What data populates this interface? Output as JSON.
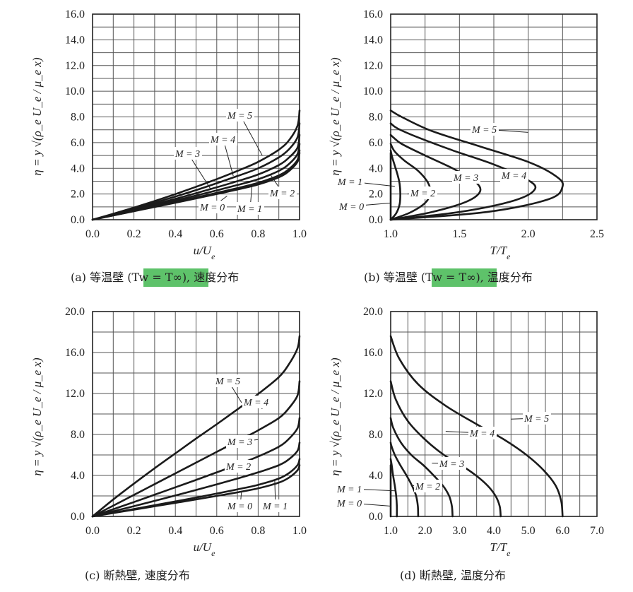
{
  "chart_data": [
    {
      "type": "line",
      "panel": "a",
      "xlabel": "u/U_e",
      "ylabel": "η = y √(ρ_e U_e / μ_e x)",
      "xlim": [
        0.0,
        1.0
      ],
      "ylim": [
        0.0,
        16.0
      ],
      "xticks": [
        "0.0",
        "0.2",
        "0.4",
        "0.6",
        "0.8",
        "1.0"
      ],
      "yticks": [
        "0.0",
        "2.0",
        "4.0",
        "6.0",
        "8.0",
        "10.0",
        "12.0",
        "14.0",
        "16.0"
      ],
      "caption": "(a) 等温壁 (Tw = T∞), 速度分布",
      "grid": true,
      "series": [
        {
          "name": "M = 0",
          "x": [
            0,
            0.1,
            0.2,
            0.3,
            0.4,
            0.5,
            0.6,
            0.7,
            0.8,
            0.9,
            0.95,
            0.99,
            1.0
          ],
          "y": [
            0,
            0.33,
            0.66,
            0.99,
            1.32,
            1.66,
            2.0,
            2.35,
            2.74,
            3.3,
            3.8,
            4.5,
            5.2
          ]
        },
        {
          "name": "M = 1",
          "x": [
            0,
            0.1,
            0.2,
            0.3,
            0.4,
            0.5,
            0.6,
            0.7,
            0.8,
            0.9,
            0.95,
            0.99,
            1.0
          ],
          "y": [
            0,
            0.34,
            0.68,
            1.03,
            1.38,
            1.73,
            2.09,
            2.46,
            2.87,
            3.45,
            3.95,
            4.65,
            5.4
          ]
        },
        {
          "name": "M = 2",
          "x": [
            0,
            0.1,
            0.2,
            0.3,
            0.4,
            0.5,
            0.6,
            0.7,
            0.8,
            0.9,
            0.95,
            0.99,
            1.0
          ],
          "y": [
            0,
            0.36,
            0.73,
            1.11,
            1.49,
            1.88,
            2.28,
            2.7,
            3.15,
            3.8,
            4.35,
            5.1,
            5.9
          ]
        },
        {
          "name": "M = 3",
          "x": [
            0,
            0.1,
            0.2,
            0.3,
            0.4,
            0.5,
            0.6,
            0.7,
            0.8,
            0.9,
            0.95,
            0.99,
            1.0
          ],
          "y": [
            0,
            0.38,
            0.78,
            1.2,
            1.62,
            2.06,
            2.52,
            3.0,
            3.52,
            4.25,
            4.85,
            5.6,
            6.6
          ]
        },
        {
          "name": "M = 4",
          "x": [
            0,
            0.1,
            0.2,
            0.3,
            0.4,
            0.5,
            0.6,
            0.7,
            0.8,
            0.9,
            0.95,
            0.99,
            1.0
          ],
          "y": [
            0,
            0.42,
            0.86,
            1.32,
            1.8,
            2.3,
            2.84,
            3.4,
            4.0,
            4.85,
            5.5,
            6.4,
            7.5
          ]
        },
        {
          "name": "M = 5",
          "x": [
            0,
            0.1,
            0.2,
            0.3,
            0.4,
            0.5,
            0.6,
            0.7,
            0.8,
            0.9,
            0.95,
            0.99,
            1.0
          ],
          "y": [
            0,
            0.46,
            0.94,
            1.45,
            1.99,
            2.56,
            3.16,
            3.8,
            4.5,
            5.45,
            6.2,
            7.3,
            8.5
          ]
        }
      ]
    },
    {
      "type": "line",
      "panel": "b",
      "xlabel": "T/T_e",
      "ylabel": "η = y √(ρ_e U_e / μ_e x)",
      "xlim": [
        1.0,
        2.5
      ],
      "ylim": [
        0.0,
        16.0
      ],
      "xticks": [
        "1.0",
        "1.5",
        "2.0",
        "2.5"
      ],
      "yticks": [
        "0.0",
        "2.0",
        "4.0",
        "6.0",
        "8.0",
        "10.0",
        "12.0",
        "14.0",
        "16.0"
      ],
      "caption": "(b) 等温壁 (Tw = T∞), 温度分布",
      "grid": true,
      "series": [
        {
          "name": "M = 0",
          "x": [
            1.0,
            1.0
          ],
          "y": [
            0,
            5.2
          ]
        },
        {
          "name": "M = 1",
          "x": [
            1.0,
            1.04,
            1.065,
            1.07,
            1.065,
            1.05,
            1.03,
            1.01,
            1.0
          ],
          "y": [
            0,
            0.5,
            1.2,
            2.0,
            2.8,
            3.5,
            4.2,
            4.9,
            5.4
          ]
        },
        {
          "name": "M = 2",
          "x": [
            1.0,
            1.14,
            1.25,
            1.29,
            1.27,
            1.2,
            1.1,
            1.03,
            1.0
          ],
          "y": [
            0,
            0.55,
            1.3,
            2.1,
            2.9,
            3.8,
            4.6,
            5.3,
            5.9
          ]
        },
        {
          "name": "M = 3",
          "x": [
            1.0,
            1.3,
            1.55,
            1.65,
            1.61,
            1.45,
            1.25,
            1.08,
            1.02,
            1.0
          ],
          "y": [
            0,
            0.6,
            1.4,
            2.2,
            3.0,
            4.0,
            5.0,
            5.9,
            6.4,
            6.6
          ]
        },
        {
          "name": "M = 4",
          "x": [
            1.0,
            1.5,
            1.9,
            2.05,
            1.98,
            1.75,
            1.45,
            1.2,
            1.05,
            1.0
          ],
          "y": [
            0,
            0.6,
            1.5,
            2.4,
            3.2,
            4.3,
            5.4,
            6.4,
            7.1,
            7.5
          ]
        },
        {
          "name": "M = 5",
          "x": [
            1.0,
            1.7,
            2.15,
            2.25,
            2.2,
            2.0,
            1.65,
            1.3,
            1.08,
            1.0
          ],
          "y": [
            0,
            0.6,
            1.6,
            2.6,
            3.4,
            4.5,
            5.7,
            6.9,
            8.0,
            8.5
          ]
        }
      ]
    },
    {
      "type": "line",
      "panel": "c",
      "xlabel": "u/U_e",
      "ylabel": "η = y √(ρ_e U_e / μ_e x)",
      "xlim": [
        0.0,
        1.0
      ],
      "ylim": [
        0.0,
        20.0
      ],
      "xticks": [
        "0.0",
        "0.2",
        "0.4",
        "0.6",
        "0.8",
        "1.0"
      ],
      "yticks": [
        "0.0",
        "4.0",
        "8.0",
        "12.0",
        "16.0",
        "20.0"
      ],
      "caption": "(c) 断熱壁, 速度分布",
      "grid": true,
      "series": [
        {
          "name": "M = 0",
          "x": [
            0,
            0.1,
            0.2,
            0.3,
            0.4,
            0.5,
            0.6,
            0.7,
            0.8,
            0.9,
            0.95,
            0.99,
            1.0
          ],
          "y": [
            0,
            0.33,
            0.66,
            0.99,
            1.32,
            1.66,
            2.0,
            2.35,
            2.74,
            3.3,
            3.8,
            4.5,
            5.0
          ]
        },
        {
          "name": "M = 1",
          "x": [
            0,
            0.1,
            0.2,
            0.3,
            0.4,
            0.5,
            0.6,
            0.7,
            0.8,
            0.9,
            0.95,
            0.99,
            1.0
          ],
          "y": [
            0,
            0.36,
            0.72,
            1.09,
            1.46,
            1.84,
            2.23,
            2.64,
            3.08,
            3.7,
            4.25,
            5.0,
            5.6
          ]
        },
        {
          "name": "M = 2",
          "x": [
            0,
            0.1,
            0.2,
            0.3,
            0.4,
            0.5,
            0.6,
            0.7,
            0.8,
            0.9,
            0.95,
            0.99,
            1.0
          ],
          "y": [
            0,
            0.5,
            1.0,
            1.52,
            2.04,
            2.58,
            3.13,
            3.7,
            4.3,
            5.0,
            5.6,
            6.4,
            7.2
          ]
        },
        {
          "name": "M = 3",
          "x": [
            0,
            0.1,
            0.2,
            0.3,
            0.4,
            0.5,
            0.6,
            0.7,
            0.8,
            0.9,
            0.95,
            0.99,
            1.0
          ],
          "y": [
            0,
            0.7,
            1.4,
            2.12,
            2.84,
            3.56,
            4.3,
            5.05,
            5.85,
            6.8,
            7.6,
            8.6,
            9.6
          ]
        },
        {
          "name": "M = 4",
          "x": [
            0,
            0.1,
            0.2,
            0.3,
            0.4,
            0.5,
            0.6,
            0.7,
            0.8,
            0.9,
            0.95,
            0.99,
            1.0
          ],
          "y": [
            0,
            1.05,
            2.1,
            3.15,
            4.2,
            5.25,
            6.3,
            7.35,
            8.4,
            9.6,
            10.6,
            11.8,
            13.2
          ]
        },
        {
          "name": "M = 5",
          "x": [
            0,
            0.1,
            0.2,
            0.3,
            0.4,
            0.5,
            0.6,
            0.7,
            0.8,
            0.9,
            0.95,
            0.99,
            1.0
          ],
          "y": [
            0,
            1.65,
            3.2,
            4.7,
            6.15,
            7.6,
            9.0,
            10.45,
            11.95,
            13.6,
            14.9,
            16.4,
            17.6
          ]
        }
      ]
    },
    {
      "type": "line",
      "panel": "d",
      "xlabel": "T/T_e",
      "ylabel": "η = y √(ρ_e U_e / μ_e x)",
      "xlim": [
        1.0,
        7.0
      ],
      "ylim": [
        0.0,
        20.0
      ],
      "xticks": [
        "1.0",
        "2.0",
        "3.0",
        "4.0",
        "5.0",
        "6.0",
        "7.0"
      ],
      "yticks": [
        "0.0",
        "4.0",
        "8.0",
        "12.0",
        "16.0",
        "20.0"
      ],
      "caption": "(d) 断熱壁, 温度分布",
      "grid": true,
      "series": [
        {
          "name": "M = 0",
          "x": [
            1.0,
            1.0
          ],
          "y": [
            0,
            5.0
          ]
        },
        {
          "name": "M = 1",
          "x": [
            1.18,
            1.18,
            1.16,
            1.12,
            1.07,
            1.03,
            1.0
          ],
          "y": [
            0,
            1.0,
            2.0,
            3.0,
            4.0,
            5.0,
            5.6
          ]
        },
        {
          "name": "M = 2",
          "x": [
            1.8,
            1.79,
            1.74,
            1.62,
            1.46,
            1.28,
            1.12,
            1.02,
            1.0
          ],
          "y": [
            0,
            1.0,
            2.0,
            3.0,
            4.0,
            5.0,
            6.0,
            6.9,
            7.2
          ]
        },
        {
          "name": "M = 3",
          "x": [
            2.8,
            2.78,
            2.7,
            2.52,
            2.25,
            1.95,
            1.6,
            1.3,
            1.08,
            1.0
          ],
          "y": [
            0,
            1.0,
            2.0,
            3.0,
            4.0,
            5.0,
            6.0,
            7.2,
            8.6,
            9.6
          ]
        },
        {
          "name": "M = 4",
          "x": [
            4.2,
            4.17,
            4.05,
            3.82,
            3.48,
            3.05,
            2.55,
            2.0,
            1.5,
            1.15,
            1.0
          ],
          "y": [
            0,
            1.0,
            2.0,
            3.0,
            4.0,
            5.0,
            6.0,
            7.5,
            9.3,
            11.4,
            13.2
          ]
        },
        {
          "name": "M = 5",
          "x": [
            6.0,
            5.96,
            5.8,
            5.45,
            4.95,
            4.3,
            3.5,
            2.6,
            1.8,
            1.25,
            1.0
          ],
          "y": [
            0,
            1.5,
            3.0,
            4.5,
            6.0,
            7.5,
            9.0,
            10.8,
            12.9,
            15.4,
            17.6
          ]
        }
      ]
    }
  ]
}
